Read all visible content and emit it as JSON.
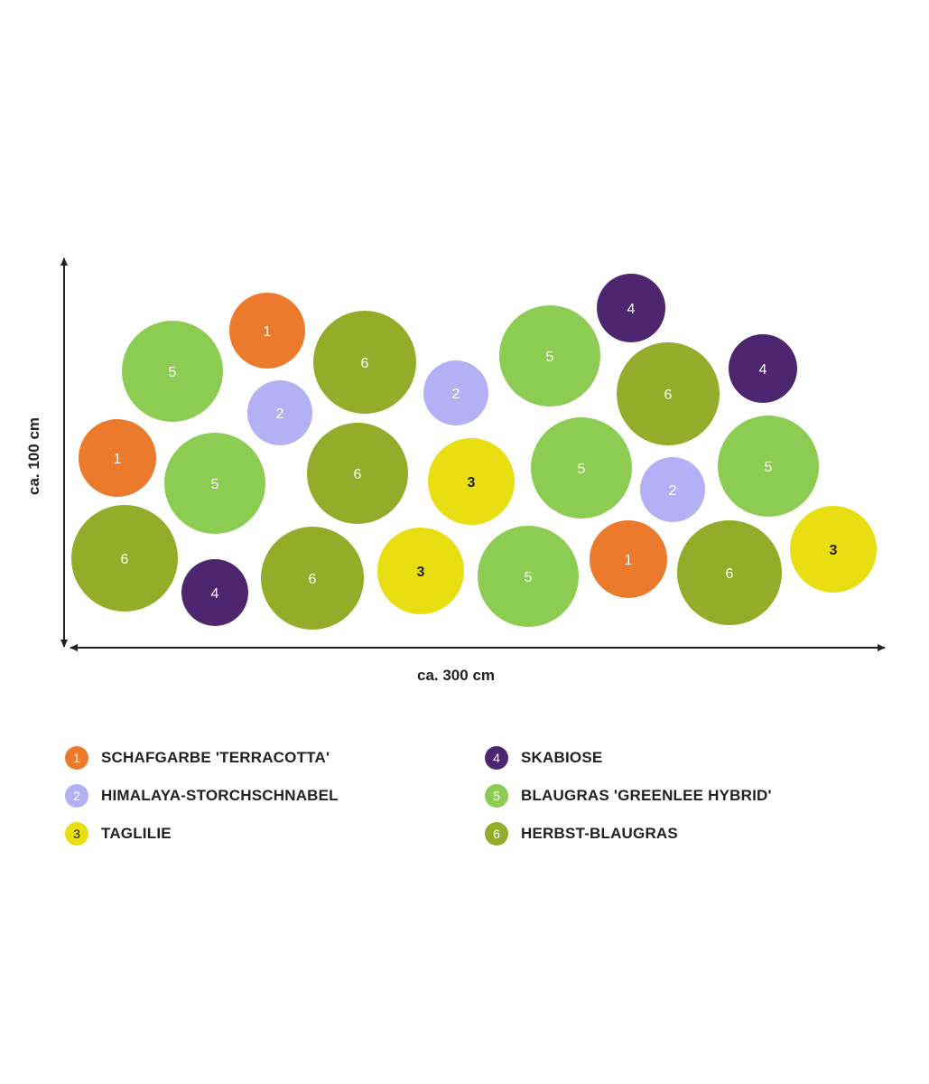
{
  "dimensions": {
    "width_label": "ca. 300 cm",
    "height_label": "ca. 100 cm"
  },
  "colors": {
    "1": "#ec7a2d",
    "2": "#b3b0f5",
    "3": "#e8de12",
    "4": "#4e2670",
    "5": "#8ccc52",
    "6": "#94ac2a"
  },
  "plants": [
    {
      "n": "5"
    },
    {
      "n": "1"
    },
    {
      "n": "6"
    },
    {
      "n": "2"
    },
    {
      "n": "2"
    },
    {
      "n": "5"
    },
    {
      "n": "4"
    },
    {
      "n": "6"
    },
    {
      "n": "4"
    },
    {
      "n": "1"
    },
    {
      "n": "5"
    },
    {
      "n": "6"
    },
    {
      "n": "3"
    },
    {
      "n": "5"
    },
    {
      "n": "2"
    },
    {
      "n": "5"
    },
    {
      "n": "6"
    },
    {
      "n": "4"
    },
    {
      "n": "6"
    },
    {
      "n": "3"
    },
    {
      "n": "5"
    },
    {
      "n": "1"
    },
    {
      "n": "6"
    },
    {
      "n": "3"
    }
  ],
  "legend": [
    {
      "n": "1",
      "label": "SCHAFGARBE 'TERRACOTTA'"
    },
    {
      "n": "2",
      "label": "HIMALAYA-STORCHSCHNABEL"
    },
    {
      "n": "3",
      "label": "TAGLILIE"
    },
    {
      "n": "4",
      "label": "SKABIOSE"
    },
    {
      "n": "5",
      "label": "BLAUGRAS 'GREENLEE HYBRID'"
    },
    {
      "n": "6",
      "label": "HERBST-BLAUGRAS"
    }
  ]
}
